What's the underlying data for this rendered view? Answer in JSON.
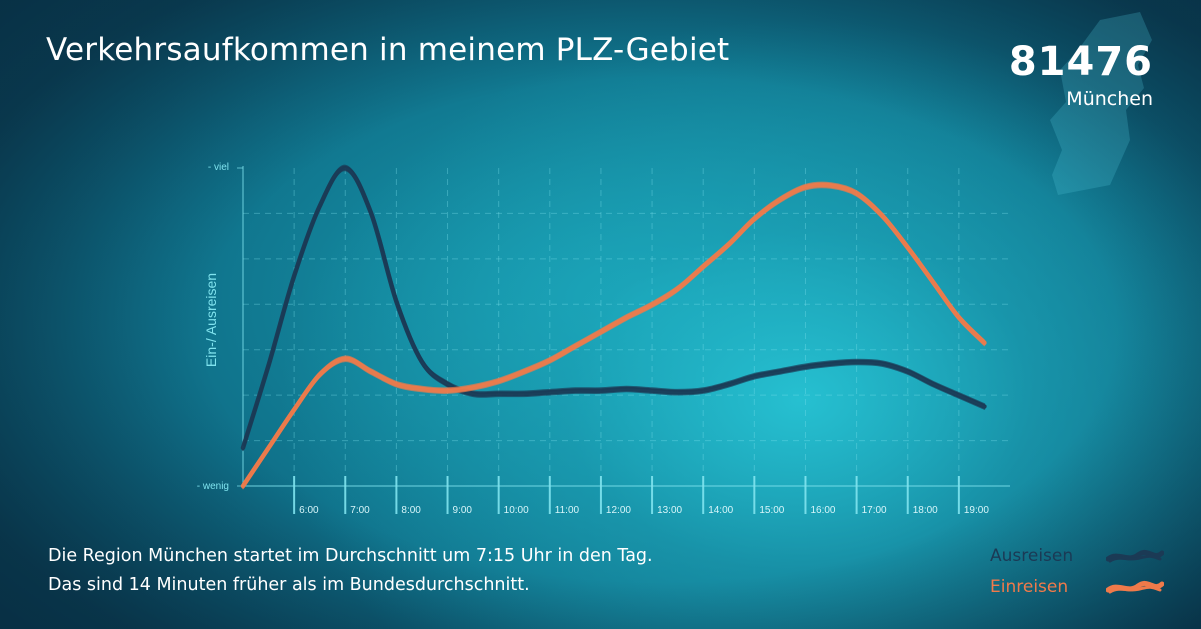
{
  "title": "Verkehrsaufkommen in meinem PLZ-Gebiet",
  "plz": {
    "code": "81476",
    "city": "München"
  },
  "caption": {
    "line1": "Die Region München startet im Durchschnitt um 7:15 Uhr in den Tag.",
    "line2": "Das sind 14 Minuten früher als im Bundesdurchschnitt."
  },
  "legend": {
    "out_label": "Ausreisen",
    "in_label": "Einreisen"
  },
  "colors": {
    "ausreisen": "#1b3a55",
    "einreisen": "#f07a4a",
    "grid": "#7fe3ee",
    "background": "#1a9fb3"
  },
  "chart_data": {
    "type": "line",
    "title": "Verkehrsaufkommen in meinem PLZ-Gebiet",
    "ylabel": "Ein-/ Ausreisen",
    "y_ticks": [
      "- viel",
      "- wenig"
    ],
    "x_tick_labels": [
      "6:00",
      "7:00",
      "8:00",
      "9:00",
      "10:00",
      "11:00",
      "12:00",
      "13:00",
      "14:00",
      "15:00",
      "16:00",
      "17:00",
      "18:00",
      "19:00"
    ],
    "x": [
      5.0,
      5.5,
      6.0,
      6.5,
      7.0,
      7.5,
      8.0,
      8.5,
      9.0,
      9.5,
      10.0,
      10.5,
      11.0,
      11.5,
      12.0,
      12.5,
      13.0,
      13.5,
      14.0,
      14.5,
      15.0,
      15.5,
      16.0,
      16.5,
      17.0,
      17.5,
      18.0,
      18.5,
      19.0,
      19.5
    ],
    "xlim": [
      5.0,
      20.0
    ],
    "ylim": [
      0,
      10
    ],
    "grid": true,
    "series": [
      {
        "name": "Ausreisen",
        "color": "#1b3a55",
        "values": [
          1.2,
          3.8,
          6.6,
          8.8,
          10.0,
          8.6,
          5.8,
          3.9,
          3.2,
          2.9,
          2.9,
          2.9,
          2.95,
          3.0,
          3.0,
          3.05,
          3.0,
          2.95,
          3.0,
          3.2,
          3.45,
          3.6,
          3.75,
          3.85,
          3.9,
          3.85,
          3.6,
          3.2,
          2.85,
          2.5
        ]
      },
      {
        "name": "Einreisen",
        "color": "#f07a4a",
        "values": [
          0.0,
          1.2,
          2.4,
          3.5,
          4.0,
          3.6,
          3.2,
          3.05,
          3.0,
          3.1,
          3.3,
          3.6,
          3.95,
          4.4,
          4.85,
          5.3,
          5.7,
          6.2,
          6.9,
          7.6,
          8.4,
          9.0,
          9.4,
          9.45,
          9.2,
          8.5,
          7.5,
          6.4,
          5.3,
          4.5
        ]
      }
    ]
  }
}
